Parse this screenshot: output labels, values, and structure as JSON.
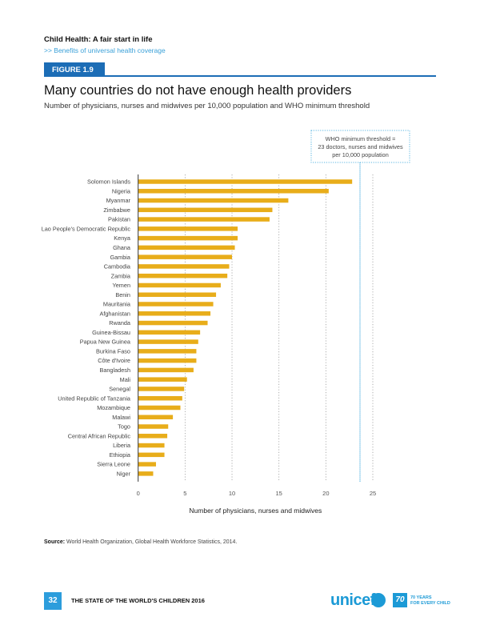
{
  "header": {
    "section_title": "Child Health: A fair start in life",
    "section_subtitle": ">> Benefits of universal health coverage",
    "figure_label": "FIGURE 1.9"
  },
  "chart_data": {
    "type": "bar",
    "orientation": "horizontal",
    "title": "Many countries do not have enough health providers",
    "subtitle": "Number of physicians, nurses and midwives per 10,000 population and WHO minimum threshold",
    "xlabel": "Number of physicians, nurses and midwives",
    "ylabel": "",
    "xlim": [
      0,
      25
    ],
    "xticks": [
      0,
      5,
      10,
      15,
      20,
      25
    ],
    "grid": true,
    "bar_color": "#e8ad1a",
    "threshold": {
      "value": 23,
      "color": "#5ab4e0",
      "annotation": [
        "WHO minimum threshold =",
        "23 doctors, nurses and midwives",
        "per 10,000 population"
      ]
    },
    "categories": [
      "Solomon Islands",
      "Nigeria",
      "Myanmar",
      "Zimbabwe",
      "Pakistan",
      "Lao People's Democratic Republic",
      "Kenya",
      "Ghana",
      "Gambia",
      "Cambodia",
      "Zambia",
      "Yemen",
      "Benin",
      "Mauritania",
      "Afghanistan",
      "Rwanda",
      "Guinea-Bissau",
      "Papua New Guinea",
      "Burkina Faso",
      "Côte d'Ivoire",
      "Bangladesh",
      "Mali",
      "Senegal",
      "United Republic of Tanzania",
      "Mozambique",
      "Malawi",
      "Togo",
      "Central African Republic",
      "Liberia",
      "Ethiopia",
      "Sierra Leone",
      "Niger"
    ],
    "values": [
      22.8,
      20.3,
      16.0,
      14.3,
      14.0,
      10.6,
      10.6,
      10.3,
      10.0,
      9.7,
      9.5,
      8.8,
      8.3,
      8.0,
      7.7,
      7.4,
      6.6,
      6.4,
      6.2,
      6.2,
      5.9,
      5.2,
      4.9,
      4.7,
      4.5,
      3.7,
      3.2,
      3.1,
      2.8,
      2.8,
      1.9,
      1.6
    ]
  },
  "source": {
    "label": "Source:",
    "text": " World Health Organization, Global Health Workforce Statistics, 2014."
  },
  "footer": {
    "page_number": "32",
    "publication": "THE STATE OF THE WORLD'S CHILDREN 2016",
    "brand": "unicef",
    "anniversary_badge": "70",
    "anniversary_line1": "70 YEARS",
    "anniversary_line2": "FOR EVERY CHILD"
  }
}
